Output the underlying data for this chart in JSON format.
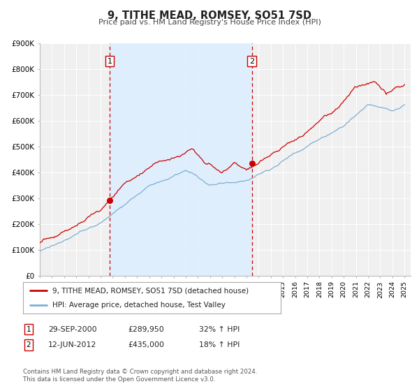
{
  "title": "9, TITHE MEAD, ROMSEY, SO51 7SD",
  "subtitle": "Price paid vs. HM Land Registry's House Price Index (HPI)",
  "ylim": [
    0,
    900000
  ],
  "yticks": [
    0,
    100000,
    200000,
    300000,
    400000,
    500000,
    600000,
    700000,
    800000,
    900000
  ],
  "ytick_labels": [
    "£0",
    "£100K",
    "£200K",
    "£300K",
    "£400K",
    "£500K",
    "£600K",
    "£700K",
    "£800K",
    "£900K"
  ],
  "xlim_start": 1995.0,
  "xlim_end": 2025.5,
  "sale1_x": 2000.747,
  "sale1_y": 289950,
  "sale2_x": 2012.45,
  "sale2_y": 435000,
  "sale1_date": "29-SEP-2000",
  "sale1_price": "£289,950",
  "sale1_hpi": "32% ↑ HPI",
  "sale2_date": "12-JUN-2012",
  "sale2_price": "£435,000",
  "sale2_hpi": "18% ↑ HPI",
  "hpi_line_color": "#7bafd4",
  "price_line_color": "#cc0000",
  "shaded_region_color": "#ddeeff",
  "vline_color": "#cc0000",
  "legend_label_price": "9, TITHE MEAD, ROMSEY, SO51 7SD (detached house)",
  "legend_label_hpi": "HPI: Average price, detached house, Test Valley",
  "footnote": "Contains HM Land Registry data © Crown copyright and database right 2024.\nThis data is licensed under the Open Government Licence v3.0.",
  "background_color": "#ffffff",
  "plot_bg_color": "#f0f0f0",
  "grid_color": "#ffffff"
}
